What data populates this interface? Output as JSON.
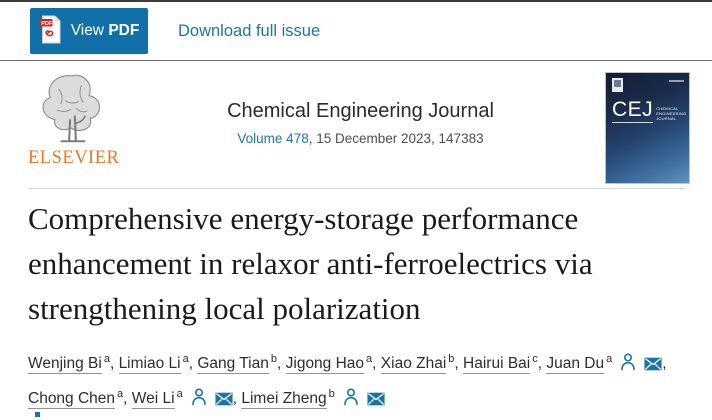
{
  "toolbar": {
    "view_pdf": {
      "label_regular": "View ",
      "label_bold": "PDF"
    },
    "download_full_issue": "Download full issue"
  },
  "journal_header": {
    "publisher_logo_text": "ELSEVIER",
    "journal_title": "Chemical Engineering Journal",
    "volume_link_text": "Volume 478",
    "citation_rest": ", 15 December 2023, 147383",
    "cover": {
      "abbrev": "CEJ",
      "name_lines": [
        "CHEMICAL",
        "ENGINEERING",
        "JOURNAL"
      ]
    }
  },
  "article": {
    "title": "Comprehensive energy-storage performance enhancement in relaxor anti-ferroelectrics via strengthening local polarization",
    "authors": [
      {
        "name": "Wenjing Bi",
        "affiliation_sup": "a"
      },
      {
        "name": "Limiao Li",
        "affiliation_sup": "a"
      },
      {
        "name": "Gang Tian",
        "affiliation_sup": "b"
      },
      {
        "name": "Jigong Hao",
        "affiliation_sup": "a"
      },
      {
        "name": "Xiao Zhai",
        "affiliation_sup": "b"
      },
      {
        "name": "Hairui Bai",
        "affiliation_sup": "c"
      },
      {
        "name": "Juan Du",
        "affiliation_sup": "a",
        "corresponding": true,
        "break_after": true
      },
      {
        "name": "Chong Chen",
        "affiliation_sup": "a"
      },
      {
        "name": "Wei Li",
        "affiliation_sup": "a",
        "corresponding": true
      },
      {
        "name": "Limei Zheng",
        "affiliation_sup": "b",
        "corresponding": true
      }
    ]
  },
  "colors": {
    "button_blue": "#1270a8",
    "link_blue": "#1b74ad",
    "icon_blue": "#1a73a8",
    "elsevier_orange": "#ef7622",
    "title_text": "#1a1a1a"
  }
}
